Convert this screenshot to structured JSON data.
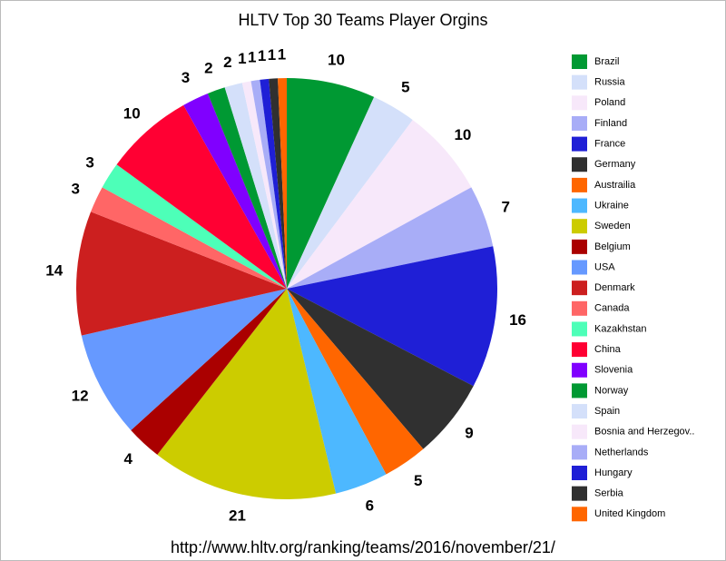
{
  "chart_data": {
    "type": "pie",
    "title": "HLTV Top 30 Teams Player Orgins",
    "caption": "http://www.hltv.org/ranking/teams/2016/november/21/",
    "categories": [
      "Brazil",
      "Russia",
      "Poland",
      "Finland",
      "France",
      "Germany",
      "Austrailia",
      "Ukraine",
      "Sweden",
      "Belgium",
      "USA",
      "Denmark",
      "Canada",
      "Kazakhstan",
      "China",
      "Slovenia",
      "Norway",
      "Spain",
      "Bosnia and Herzegov..",
      "Netherlands",
      "Hungary",
      "Serbia",
      "United Kingdom"
    ],
    "values": [
      10,
      5,
      10,
      7,
      16,
      9,
      5,
      6,
      21,
      4,
      12,
      14,
      3,
      3,
      10,
      3,
      2,
      2,
      1,
      1,
      1,
      1,
      1
    ],
    "colors": [
      "#009933",
      "#d4e0fa",
      "#f7e8fa",
      "#a8adf7",
      "#1f1fd6",
      "#303030",
      "#ff6600",
      "#4db8ff",
      "#cccc00",
      "#aa0000",
      "#6699ff",
      "#cc1f1f",
      "#ff6666",
      "#4dffb8",
      "#ff0033",
      "#8000ff",
      "#009933",
      "#d4e0fa",
      "#f7e8fa",
      "#a8adf7",
      "#1f1fd6",
      "#303030",
      "#ff6600"
    ],
    "legend": "right"
  }
}
